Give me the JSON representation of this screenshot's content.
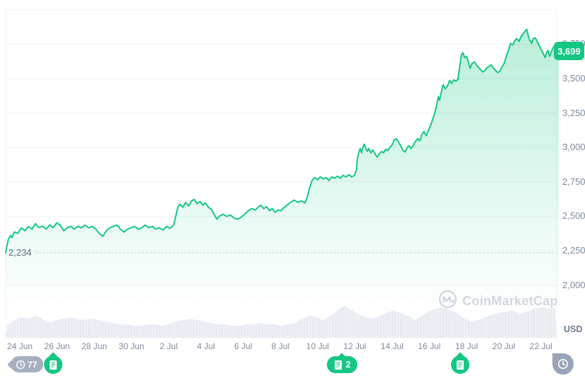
{
  "meta": {
    "watermark": "CoinMarketCap",
    "unit_label": "USD"
  },
  "price_badge": {
    "value": "3,699"
  },
  "low_annotation": {
    "label": "2,234",
    "value": 2234
  },
  "colors": {
    "line_green": "#16c784",
    "badge_green": "#16c784",
    "axis_text": "#808a9d",
    "low_label_text": "#616e85",
    "gridline": "#f0f2f5",
    "dotted_low_line": "#c9d0dc",
    "volume_fill": "#e7ebf1",
    "volume_fill_light": "#f0f3f7",
    "watermark_gray": "#cdd3df",
    "history_marker_gray": "#a6afc0",
    "time_marker_gray": "#9aa4b8"
  },
  "markers": {
    "history": {
      "t": 0.38,
      "count": "77",
      "icon": "clock"
    },
    "news_26jun": {
      "t": 1.79,
      "icon": "document"
    },
    "news_12jul": {
      "t": 17.3,
      "count": "2",
      "icon": "document"
    },
    "news_18jul": {
      "t": 23.66,
      "icon": "document"
    },
    "latest_time": {
      "t": 29.2,
      "icon": "clock"
    }
  },
  "chart_data": {
    "type": "line",
    "title": "",
    "xlabel": "",
    "ylabel": "",
    "unit": "USD",
    "current_price": 3699,
    "period_low": 2234,
    "ylim": [
      2000,
      4000
    ],
    "xlim_days": [
      -0.76,
      28.95
    ],
    "grid": "horizontal",
    "legend_position": "none",
    "y_ticks": [
      {
        "label": "2,000",
        "v": 2000
      },
      {
        "label": "2,250",
        "v": 2250
      },
      {
        "label": "2,500",
        "v": 2500
      },
      {
        "label": "2,750",
        "v": 2750
      },
      {
        "label": "3,000",
        "v": 3000
      },
      {
        "label": "3,250",
        "v": 3250
      },
      {
        "label": "3,500",
        "v": 3500
      },
      {
        "label": "3,750",
        "v": 3750
      }
    ],
    "x_ticks": [
      {
        "label": "24 Jun",
        "t": 0
      },
      {
        "label": "26 Jun",
        "t": 2
      },
      {
        "label": "28 Jun",
        "t": 4
      },
      {
        "label": "30 Jun",
        "t": 6
      },
      {
        "label": "2 Jul",
        "t": 8
      },
      {
        "label": "4 Jul",
        "t": 10
      },
      {
        "label": "6 Jul",
        "t": 12
      },
      {
        "label": "8 Jul",
        "t": 14
      },
      {
        "label": "10 Jul",
        "t": 16
      },
      {
        "label": "12 Jul",
        "t": 18
      },
      {
        "label": "14 Jul",
        "t": 20
      },
      {
        "label": "16 Jul",
        "t": 22
      },
      {
        "label": "18 Jul",
        "t": 24
      },
      {
        "label": "20 Jul",
        "t": 26
      },
      {
        "label": "22 Jul",
        "t": 28
      }
    ],
    "price_series": {
      "name": "Price (USD), days since 24 Jun",
      "points": [
        [
          -0.76,
          2234
        ],
        [
          -0.68,
          2296
        ],
        [
          -0.61,
          2334
        ],
        [
          -0.5,
          2360
        ],
        [
          -0.42,
          2344
        ],
        [
          -0.3,
          2385
        ],
        [
          -0.11,
          2375
        ],
        [
          0.08,
          2415
        ],
        [
          0.27,
          2395
        ],
        [
          0.46,
          2425
        ],
        [
          0.65,
          2407
        ],
        [
          0.84,
          2446
        ],
        [
          1.03,
          2417
        ],
        [
          1.22,
          2427
        ],
        [
          1.41,
          2407
        ],
        [
          1.6,
          2436
        ],
        [
          1.79,
          2417
        ],
        [
          1.98,
          2451
        ],
        [
          2.17,
          2436
        ],
        [
          2.36,
          2394
        ],
        [
          2.55,
          2415
        ],
        [
          2.74,
          2426
        ],
        [
          2.93,
          2407
        ],
        [
          3.12,
          2426
        ],
        [
          3.31,
          2416
        ],
        [
          3.5,
          2436
        ],
        [
          3.7,
          2416
        ],
        [
          3.89,
          2426
        ],
        [
          4.08,
          2406
        ],
        [
          4.27,
          2375
        ],
        [
          4.46,
          2354
        ],
        [
          4.65,
          2395
        ],
        [
          4.84,
          2416
        ],
        [
          5.03,
          2426
        ],
        [
          5.22,
          2436
        ],
        [
          5.41,
          2406
        ],
        [
          5.6,
          2385
        ],
        [
          5.79,
          2406
        ],
        [
          5.98,
          2416
        ],
        [
          6.17,
          2426
        ],
        [
          6.36,
          2406
        ],
        [
          6.55,
          2416
        ],
        [
          6.74,
          2436
        ],
        [
          6.93,
          2416
        ],
        [
          7.12,
          2426
        ],
        [
          7.31,
          2406
        ],
        [
          7.5,
          2416
        ],
        [
          7.7,
          2400
        ],
        [
          7.89,
          2426
        ],
        [
          8.08,
          2411
        ],
        [
          8.27,
          2437
        ],
        [
          8.38,
          2503
        ],
        [
          8.5,
          2570
        ],
        [
          8.61,
          2586
        ],
        [
          8.76,
          2565
        ],
        [
          8.91,
          2601
        ],
        [
          9.07,
          2575
        ],
        [
          9.22,
          2611
        ],
        [
          9.37,
          2622
        ],
        [
          9.52,
          2591
        ],
        [
          9.68,
          2606
        ],
        [
          9.83,
          2581
        ],
        [
          9.98,
          2596
        ],
        [
          10.13,
          2565
        ],
        [
          10.29,
          2550
        ],
        [
          10.44,
          2514
        ],
        [
          10.59,
          2478
        ],
        [
          10.74,
          2503
        ],
        [
          10.93,
          2514
        ],
        [
          11.12,
          2498
        ],
        [
          11.31,
          2509
        ],
        [
          11.5,
          2488
        ],
        [
          11.7,
          2478
        ],
        [
          11.89,
          2493
        ],
        [
          12.08,
          2514
        ],
        [
          12.27,
          2540
        ],
        [
          12.46,
          2555
        ],
        [
          12.65,
          2545
        ],
        [
          12.84,
          2570
        ],
        [
          12.95,
          2581
        ],
        [
          13.1,
          2555
        ],
        [
          13.26,
          2570
        ],
        [
          13.41,
          2540
        ],
        [
          13.56,
          2555
        ],
        [
          13.71,
          2529
        ],
        [
          13.87,
          2545
        ],
        [
          14.02,
          2540
        ],
        [
          14.17,
          2560
        ],
        [
          14.36,
          2581
        ],
        [
          14.55,
          2601
        ],
        [
          14.74,
          2617
        ],
        [
          14.93,
          2601
        ],
        [
          15.12,
          2611
        ],
        [
          15.31,
          2596
        ],
        [
          15.43,
          2632
        ],
        [
          15.54,
          2694
        ],
        [
          15.7,
          2760
        ],
        [
          15.85,
          2781
        ],
        [
          16,
          2765
        ],
        [
          16.15,
          2786
        ],
        [
          16.3,
          2771
        ],
        [
          16.46,
          2781
        ],
        [
          16.61,
          2760
        ],
        [
          16.76,
          2786
        ],
        [
          16.91,
          2776
        ],
        [
          17.07,
          2791
        ],
        [
          17.22,
          2776
        ],
        [
          17.37,
          2797
        ],
        [
          17.52,
          2786
        ],
        [
          17.68,
          2802
        ],
        [
          17.83,
          2786
        ],
        [
          17.98,
          2797
        ],
        [
          18.09,
          2838
        ],
        [
          18.13,
          2915
        ],
        [
          18.21,
          2966
        ],
        [
          18.29,
          2992
        ],
        [
          18.36,
          2961
        ],
        [
          18.44,
          3003
        ],
        [
          18.51,
          3023
        ],
        [
          18.59,
          2992
        ],
        [
          18.67,
          2971
        ],
        [
          18.74,
          2992
        ],
        [
          18.86,
          2961
        ],
        [
          18.97,
          2982
        ],
        [
          19.09,
          2951
        ],
        [
          19.2,
          2930
        ],
        [
          19.31,
          2951
        ],
        [
          19.43,
          2971
        ],
        [
          19.54,
          2961
        ],
        [
          19.66,
          2987
        ],
        [
          19.77,
          2977
        ],
        [
          19.89,
          3003
        ],
        [
          20,
          3018
        ],
        [
          20.11,
          3054
        ],
        [
          20.23,
          3064
        ],
        [
          20.34,
          3039
        ],
        [
          20.46,
          3013
        ],
        [
          20.57,
          2982
        ],
        [
          20.69,
          2966
        ],
        [
          20.8,
          2997
        ],
        [
          20.91,
          3013
        ],
        [
          21.03,
          2992
        ],
        [
          21.14,
          3018
        ],
        [
          21.26,
          3044
        ],
        [
          21.37,
          3064
        ],
        [
          21.49,
          3049
        ],
        [
          21.6,
          3095
        ],
        [
          21.71,
          3116
        ],
        [
          21.83,
          3085
        ],
        [
          21.94,
          3121
        ],
        [
          22.06,
          3157
        ],
        [
          22.17,
          3198
        ],
        [
          22.29,
          3250
        ],
        [
          22.4,
          3312
        ],
        [
          22.48,
          3369
        ],
        [
          22.55,
          3343
        ],
        [
          22.63,
          3394
        ],
        [
          22.74,
          3456
        ],
        [
          22.86,
          3425
        ],
        [
          22.97,
          3446
        ],
        [
          23.09,
          3487
        ],
        [
          23.2,
          3466
        ],
        [
          23.31,
          3492
        ],
        [
          23.43,
          3482
        ],
        [
          23.54,
          3497
        ],
        [
          23.66,
          3611
        ],
        [
          23.73,
          3678
        ],
        [
          23.81,
          3688
        ],
        [
          23.89,
          3652
        ],
        [
          24,
          3662
        ],
        [
          24.08,
          3631
        ],
        [
          24.19,
          3575
        ],
        [
          24.3,
          3611
        ],
        [
          24.42,
          3621
        ],
        [
          24.53,
          3600
        ],
        [
          24.65,
          3580
        ],
        [
          24.76,
          3564
        ],
        [
          24.88,
          3549
        ],
        [
          24.99,
          3559
        ],
        [
          25.1,
          3580
        ],
        [
          25.22,
          3590
        ],
        [
          25.33,
          3600
        ],
        [
          25.45,
          3575
        ],
        [
          25.56,
          3559
        ],
        [
          25.68,
          3544
        ],
        [
          25.79,
          3554
        ],
        [
          25.9,
          3585
        ],
        [
          26.02,
          3611
        ],
        [
          26.13,
          3662
        ],
        [
          26.25,
          3704
        ],
        [
          26.36,
          3755
        ],
        [
          26.48,
          3745
        ],
        [
          26.59,
          3776
        ],
        [
          26.7,
          3791
        ],
        [
          26.82,
          3770
        ],
        [
          26.93,
          3807
        ],
        [
          27.05,
          3827
        ],
        [
          27.16,
          3848
        ],
        [
          27.24,
          3858
        ],
        [
          27.31,
          3817
        ],
        [
          27.39,
          3781
        ],
        [
          27.5,
          3755
        ],
        [
          27.58,
          3791
        ],
        [
          27.7,
          3796
        ],
        [
          27.81,
          3765
        ],
        [
          27.92,
          3734
        ],
        [
          28.04,
          3704
        ],
        [
          28.15,
          3673
        ],
        [
          28.23,
          3652
        ],
        [
          28.3,
          3693
        ],
        [
          28.38,
          3704
        ],
        [
          28.46,
          3662
        ],
        [
          28.53,
          3683
        ],
        [
          28.61,
          3714
        ],
        [
          28.69,
          3734
        ],
        [
          28.76,
          3745
        ],
        [
          28.88,
          3714
        ],
        [
          28.95,
          3699
        ]
      ]
    },
    "volume_series": {
      "name": "24h volume (relative height, evenly sampled across full range)",
      "values": [
        16,
        24,
        28,
        26,
        30,
        26,
        20,
        24,
        26,
        28,
        26,
        24,
        26,
        24,
        22,
        20,
        18,
        18,
        16,
        16,
        18,
        18,
        16,
        18,
        22,
        24,
        26,
        24,
        22,
        20,
        18,
        18,
        16,
        16,
        18,
        18,
        20,
        18,
        18,
        16,
        18,
        20,
        26,
        30,
        28,
        24,
        30,
        38,
        44,
        38,
        32,
        28,
        26,
        30,
        34,
        38,
        34,
        30,
        24,
        30,
        36,
        40,
        42,
        38,
        34,
        26,
        22,
        24,
        28,
        32,
        34,
        36,
        38,
        33,
        36,
        40,
        42,
        40,
        41
      ]
    }
  }
}
